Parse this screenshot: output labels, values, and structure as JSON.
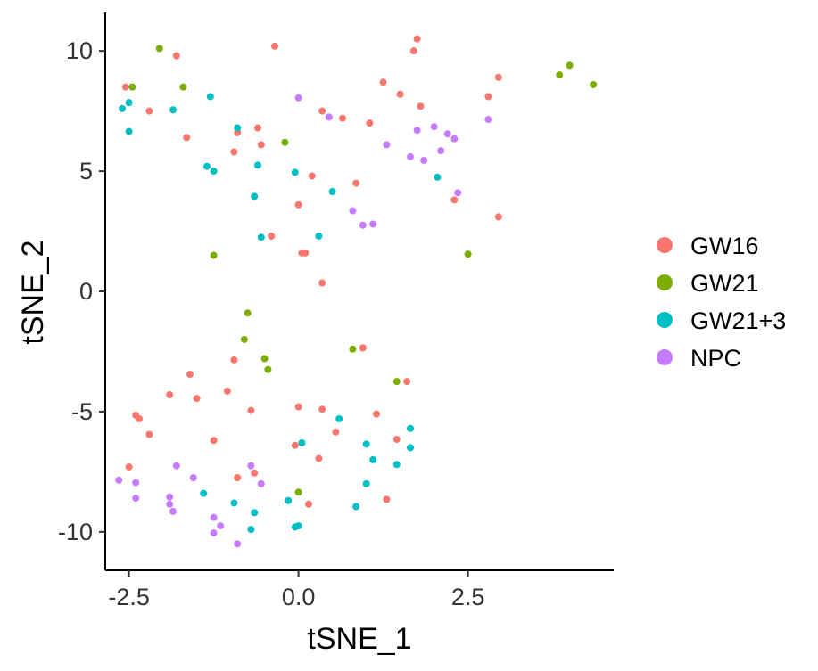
{
  "chart_data": {
    "type": "scatter",
    "title": "",
    "xlabel": "tSNE_1",
    "ylabel": "tSNE_2",
    "xlim": [
      -2.85,
      4.65
    ],
    "ylim": [
      -11.6,
      11.6
    ],
    "xticks": [
      -2.5,
      0.0,
      2.5
    ],
    "xtick_labels": [
      "-2.5",
      "0.0",
      "2.5"
    ],
    "yticks": [
      10,
      5,
      0,
      -5,
      -10
    ],
    "ytick_labels": [
      "10",
      "5",
      "0",
      "-5",
      "-10"
    ],
    "grid": false,
    "legend_position": "right",
    "series": [
      {
        "name": "GW16",
        "color": "#F8766D",
        "x": [
          -2.55,
          -2.2,
          -1.8,
          -1.65,
          -0.35,
          1.25,
          1.5,
          1.75,
          1.7,
          1.8,
          2.8,
          2.95,
          0.35,
          0.65,
          1.05,
          -0.6,
          -0.55,
          -0.9,
          -0.95,
          0.2,
          0.85,
          0.0,
          0.05,
          -0.4,
          0.1,
          0.35,
          2.3,
          2.95,
          0.95,
          1.6,
          1.15,
          0.35,
          -0.7,
          -0.95,
          -1.6,
          -1.05,
          -1.9,
          -1.5,
          -2.4,
          -2.35,
          -2.2,
          -1.25,
          -2.5,
          -0.9,
          -0.65,
          0.0,
          0.55,
          0.3,
          1.45,
          1.3,
          0.15,
          -0.05
        ],
        "y": [
          8.5,
          7.5,
          9.8,
          6.4,
          10.2,
          8.7,
          8.2,
          10.5,
          10.0,
          7.7,
          8.1,
          8.9,
          7.5,
          7.2,
          7.0,
          6.8,
          6.1,
          6.6,
          5.8,
          4.8,
          4.5,
          3.6,
          1.6,
          2.3,
          1.6,
          0.35,
          3.8,
          3.1,
          -2.35,
          -3.75,
          -5.1,
          -4.9,
          -4.95,
          -2.85,
          -3.45,
          -4.15,
          -4.3,
          -4.45,
          -5.15,
          -5.3,
          -5.95,
          -6.2,
          -7.3,
          -7.75,
          -7.55,
          -4.8,
          -5.85,
          -6.95,
          -6.15,
          -8.65,
          -8.85,
          -6.4
        ]
      },
      {
        "name": "GW21",
        "color": "#7CAE00",
        "x": [
          -2.45,
          -2.05,
          -1.7,
          -0.2,
          -1.25,
          -0.75,
          -0.8,
          -0.5,
          -0.45,
          0.8,
          1.45,
          0.0,
          2.5,
          3.85,
          4.0,
          4.35
        ],
        "y": [
          8.5,
          10.1,
          8.5,
          6.2,
          1.5,
          -0.9,
          -2.0,
          -2.8,
          -3.25,
          -2.4,
          -3.75,
          -8.35,
          1.55,
          9.0,
          9.4,
          8.6
        ]
      },
      {
        "name": "GW21+3",
        "color": "#00BFC4",
        "x": [
          -2.6,
          -2.5,
          -2.5,
          -1.85,
          -1.3,
          -1.35,
          -1.25,
          -0.9,
          -0.65,
          -0.6,
          -0.55,
          -0.05,
          0.5,
          0.3,
          2.05,
          1.65,
          1.65,
          1.45,
          1.1,
          1.0,
          0.6,
          0.05,
          1.0,
          0.85,
          0.0,
          -0.05,
          -0.15,
          -0.65,
          -0.7,
          -0.95,
          -1.4
        ],
        "y": [
          7.6,
          7.85,
          6.65,
          7.55,
          8.1,
          5.2,
          5.0,
          6.8,
          3.95,
          5.25,
          2.25,
          4.95,
          4.15,
          2.3,
          4.75,
          -5.7,
          -6.5,
          -7.2,
          -7.0,
          -6.35,
          -5.3,
          -6.3,
          -8.0,
          -8.95,
          -9.75,
          -9.8,
          -8.7,
          -9.2,
          -9.9,
          -8.8,
          -8.4
        ]
      },
      {
        "name": "NPC",
        "color": "#C77CFF",
        "x": [
          0.0,
          0.45,
          1.3,
          1.65,
          1.75,
          1.85,
          2.0,
          2.1,
          2.2,
          2.3,
          2.8,
          0.8,
          0.95,
          1.1,
          2.35,
          -2.65,
          -2.4,
          -2.4,
          -1.8,
          -1.9,
          -1.9,
          -1.55,
          -1.85,
          -1.25,
          -1.25,
          -1.15,
          -0.9,
          -0.7,
          -0.55
        ],
        "y": [
          8.05,
          7.25,
          6.1,
          5.6,
          6.7,
          5.45,
          6.85,
          5.85,
          6.55,
          6.35,
          7.15,
          3.35,
          2.75,
          2.8,
          4.1,
          -7.85,
          -7.95,
          -8.6,
          -7.25,
          -8.55,
          -8.85,
          -7.75,
          -9.15,
          -9.4,
          -10.05,
          -9.75,
          -10.5,
          -7.25,
          -8.0
        ]
      }
    ]
  }
}
